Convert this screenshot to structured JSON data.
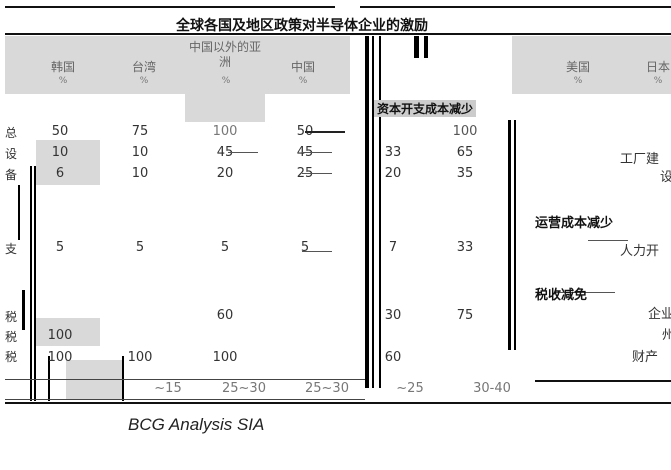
{
  "title": "全球各国及地区政策对半导体企业的激励",
  "columns": {
    "korea": {
      "name": "韩国",
      "unit": "%"
    },
    "taiwan": {
      "name": "台湾",
      "unit": "%"
    },
    "china_asia": {
      "name": "中国以外的亚洲",
      "unit": "%"
    },
    "china": {
      "name": "中国",
      "unit": "%"
    },
    "usa": {
      "name": "美国",
      "unit": "%"
    },
    "japan": {
      "name": "日本",
      "unit": "%"
    }
  },
  "row_labels": [
    "总",
    "设",
    "备",
    "支",
    "税",
    "税",
    "税"
  ],
  "rows": [
    {
      "korea": "50",
      "taiwan": "75",
      "china_asia": "100",
      "china": "50",
      "mid1": "",
      "mid2": "100"
    },
    {
      "korea": "10",
      "taiwan": "10",
      "china_asia": "45",
      "china": "45",
      "mid1": "33",
      "mid2": "65"
    },
    {
      "korea": "6",
      "taiwan": "10",
      "china_asia": "20",
      "china": "25",
      "mid1": "20",
      "mid2": "35"
    },
    {
      "korea": "5",
      "taiwan": "5",
      "china_asia": "5",
      "china": "5",
      "mid1": "7",
      "mid2": "33"
    },
    {
      "korea": "",
      "taiwan": "",
      "china_asia": "60",
      "china": "",
      "mid1": "30",
      "mid2": "75"
    },
    {
      "korea": "100",
      "taiwan": "",
      "china_asia": "",
      "china": "",
      "mid1": "",
      "mid2": ""
    },
    {
      "korea": "100",
      "taiwan": "100",
      "china_asia": "100",
      "china": "",
      "mid1": "60",
      "mid2": ""
    }
  ],
  "total_row": {
    "c1": "~15",
    "c2": "25~30",
    "c3": "25~30",
    "c4": "~25",
    "c5": "30-40"
  },
  "right_sections": {
    "capex_reduction": "资本开支成本减少",
    "opex_reduction": "运营成本减少",
    "tax_reduction": "税收减免",
    "items": [
      "工厂建",
      "设",
      "人力开",
      "企业",
      "州",
      "财产"
    ]
  },
  "source": "BCG Analysis    SIA"
}
